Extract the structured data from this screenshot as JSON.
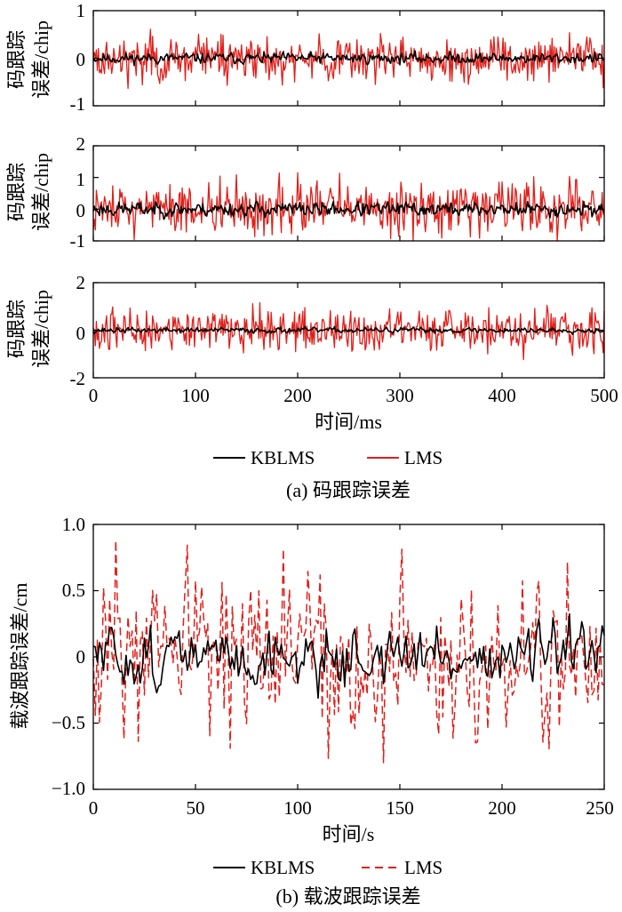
{
  "figure": {
    "caption_a": "(a) 码跟踪误差",
    "caption_b": "(b) 载波跟踪误差"
  },
  "colors": {
    "kblms": "#000000",
    "lms": "#e0201b"
  },
  "chart_data": [
    {
      "type": "line",
      "panel": "a-1",
      "ylabel": "码跟踪误差/chip",
      "xlim": [
        0,
        500
      ],
      "ylim": [
        -1,
        1
      ],
      "yticks": [
        "-1",
        "0",
        "1"
      ],
      "grid": false,
      "series": [
        {
          "name": "KBLMS",
          "amplitude_approx": 0.15,
          "x_range": [
            0,
            500
          ]
        },
        {
          "name": "LMS",
          "amplitude_approx": 0.6,
          "x_range": [
            0,
            500
          ]
        }
      ]
    },
    {
      "type": "line",
      "panel": "a-2",
      "ylabel": "码跟踪误差/chip",
      "xlim": [
        0,
        500
      ],
      "ylim": [
        -1,
        2
      ],
      "yticks": [
        "-1",
        "0",
        "1",
        "2"
      ],
      "grid": false,
      "series": [
        {
          "name": "KBLMS",
          "amplitude_approx": 0.3,
          "x_range": [
            0,
            500
          ]
        },
        {
          "name": "LMS",
          "amplitude_approx": 1.1,
          "x_range": [
            0,
            500
          ]
        }
      ]
    },
    {
      "type": "line",
      "panel": "a-3",
      "ylabel": "码跟踪误差/chip",
      "xlabel": "时间/ms",
      "xlim": [
        0,
        500
      ],
      "ylim": [
        -2,
        2
      ],
      "xticks": [
        "0",
        "100",
        "200",
        "300",
        "400",
        "500"
      ],
      "yticks": [
        "-2",
        "0",
        "2"
      ],
      "grid": false,
      "legend": {
        "placement": "bottom-center",
        "entries": [
          "KBLMS",
          "LMS"
        ]
      },
      "series": [
        {
          "name": "KBLMS",
          "amplitude_approx": 0.15,
          "x_range": [
            0,
            500
          ]
        },
        {
          "name": "LMS",
          "amplitude_approx": 1.1,
          "x_range": [
            0,
            500
          ]
        }
      ]
    },
    {
      "type": "line",
      "panel": "b",
      "ylabel": "载波跟踪误差/cm",
      "xlabel": "时间/s",
      "xlim": [
        0,
        250
      ],
      "ylim": [
        -1.0,
        1.0
      ],
      "xticks": [
        "0",
        "50",
        "100",
        "150",
        "200",
        "250"
      ],
      "yticks": [
        "−1.0",
        "−0.5",
        "0",
        "0.5",
        "1.0"
      ],
      "grid": false,
      "legend": {
        "placement": "bottom-center",
        "entries": [
          "KBLMS",
          "LMS"
        ]
      },
      "series": [
        {
          "name": "KBLMS",
          "style": "solid",
          "amplitude_approx": 0.35,
          "x_range": [
            0,
            250
          ]
        },
        {
          "name": "LMS",
          "style": "dashed",
          "amplitude_approx": 0.8,
          "x_range": [
            0,
            250
          ]
        }
      ]
    }
  ]
}
